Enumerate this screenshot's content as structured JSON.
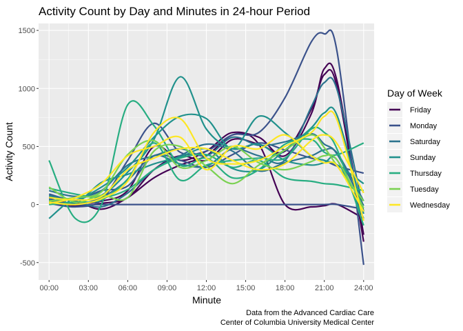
{
  "chart_data": {
    "type": "line",
    "title": "Activity Count by Day and Minutes in 24-hour Period",
    "xlabel": "Minute",
    "ylabel": "Activity Count",
    "x_ticks": [
      "00:00",
      "03:00",
      "06:00",
      "09:00",
      "12:00",
      "15:00",
      "18:00",
      "21:00",
      "24:00"
    ],
    "y_ticks": [
      "-500",
      "0",
      "500",
      "1000",
      "1500"
    ],
    "xlim_hours": [
      -0.8,
      24.8
    ],
    "ylim": [
      -650,
      1560
    ],
    "grid": true,
    "legend_position": "right",
    "legend_title": "Day of Week",
    "caption": [
      "Data from the Advanced Cardiac Care",
      "Center of Columbia University Medical Center"
    ],
    "x_hours": [
      0,
      2,
      4,
      6,
      8,
      10,
      12,
      14,
      16,
      18,
      20,
      21,
      22,
      24
    ],
    "series": [
      {
        "name": "Friday",
        "color": "#440154",
        "lines": [
          [
            20,
            -10,
            10,
            60,
            300,
            420,
            380,
            560,
            520,
            460,
            820,
            1120,
            1000,
            -320
          ],
          [
            60,
            30,
            -40,
            60,
            230,
            340,
            420,
            600,
            580,
            420,
            780,
            1170,
            1050,
            -260
          ],
          [
            40,
            10,
            30,
            120,
            500,
            380,
            460,
            620,
            520,
            0,
            -20,
            -10,
            0,
            -120
          ]
        ]
      },
      {
        "name": "Monday",
        "color": "#3b528b",
        "lines": [
          [
            10,
            -20,
            40,
            380,
            700,
            450,
            460,
            600,
            620,
            920,
            1400,
            1470,
            1300,
            -520
          ],
          [
            50,
            0,
            0,
            0,
            0,
            0,
            0,
            0,
            0,
            0,
            0,
            0,
            0,
            -40
          ],
          [
            90,
            40,
            120,
            160,
            420,
            380,
            320,
            430,
            530,
            470,
            400,
            380,
            330,
            270
          ]
        ]
      },
      {
        "name": "Saturday",
        "color": "#2c728e",
        "lines": [
          [
            30,
            0,
            60,
            210,
            420,
            350,
            330,
            480,
            420,
            380,
            840,
            1050,
            980,
            -60
          ],
          [
            80,
            30,
            -20,
            100,
            300,
            420,
            520,
            460,
            290,
            360,
            420,
            470,
            440,
            30
          ],
          [
            120,
            70,
            120,
            340,
            420,
            480,
            420,
            580,
            510,
            540,
            610,
            520,
            430,
            -10
          ]
        ]
      },
      {
        "name": "Sunday",
        "color": "#21918c",
        "lines": [
          [
            -120,
            60,
            80,
            280,
            560,
            1100,
            650,
            480,
            520,
            380,
            340,
            360,
            380,
            -120
          ],
          [
            70,
            40,
            150,
            320,
            580,
            760,
            740,
            480,
            760,
            620,
            420,
            380,
            340,
            180
          ],
          [
            40,
            10,
            190,
            260,
            350,
            410,
            480,
            310,
            300,
            470,
            660,
            790,
            760,
            -80
          ]
        ]
      },
      {
        "name": "Thursday",
        "color": "#27ad81",
        "lines": [
          [
            380,
            -120,
            0,
            860,
            680,
            340,
            400,
            230,
            300,
            520,
            560,
            450,
            430,
            530
          ],
          [
            0,
            20,
            40,
            220,
            530,
            210,
            340,
            380,
            400,
            400,
            650,
            620,
            470,
            -180
          ],
          [
            140,
            90,
            60,
            130,
            300,
            400,
            430,
            320,
            380,
            230,
            200,
            180,
            170,
            120
          ]
        ]
      },
      {
        "name": "Tuesday",
        "color": "#7ad151",
        "lines": [
          [
            150,
            20,
            80,
            60,
            460,
            500,
            330,
            180,
            340,
            470,
            600,
            490,
            330,
            30
          ],
          [
            30,
            60,
            110,
            430,
            550,
            320,
            380,
            500,
            360,
            300,
            370,
            420,
            380,
            -30
          ]
        ]
      },
      {
        "name": "Wednesday",
        "color": "#fde725",
        "lines": [
          [
            20,
            0,
            50,
            200,
            620,
            740,
            400,
            350,
            380,
            500,
            620,
            760,
            720,
            -140
          ],
          [
            60,
            40,
            70,
            300,
            400,
            480,
            480,
            380,
            300,
            350,
            550,
            600,
            520,
            100
          ],
          [
            10,
            60,
            180,
            420,
            500,
            580,
            300,
            500,
            480,
            600,
            420,
            360,
            330,
            -60
          ]
        ]
      }
    ]
  }
}
